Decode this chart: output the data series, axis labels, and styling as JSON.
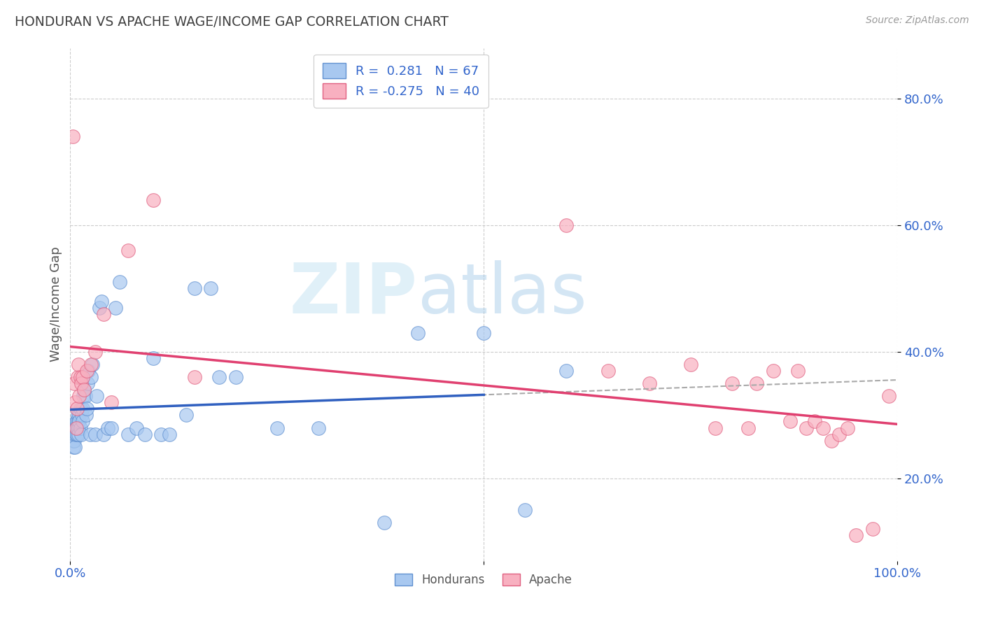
{
  "title": "HONDURAN VS APACHE WAGE/INCOME GAP CORRELATION CHART",
  "source": "Source: ZipAtlas.com",
  "ylabel": "Wage/Income Gap",
  "x_min": 0.0,
  "x_max": 1.0,
  "y_min": 0.07,
  "y_max": 0.88,
  "yticks": [
    0.2,
    0.4,
    0.6,
    0.8
  ],
  "ytick_labels": [
    "20.0%",
    "40.0%",
    "60.0%",
    "80.0%"
  ],
  "honduran_color": "#A8C8F0",
  "apache_color": "#F8B0C0",
  "honduran_edge": "#6090D0",
  "apache_edge": "#E06080",
  "reg_line_honduran": "#3060C0",
  "reg_line_apache": "#E04070",
  "dashed_color": "#AAAAAA",
  "R_honduran": 0.281,
  "N_honduran": 67,
  "R_apache": -0.275,
  "N_apache": 40,
  "background_color": "#FFFFFF",
  "grid_color": "#CCCCCC",
  "watermark_zip": "ZIP",
  "watermark_atlas": "atlas",
  "legend_label_honduran": "Hondurans",
  "legend_label_apache": "Apache",
  "title_color": "#404040",
  "axis_label_color": "#555555",
  "tick_label_color": "#3366CC",
  "honduran_x": [
    0.002,
    0.003,
    0.003,
    0.004,
    0.004,
    0.005,
    0.005,
    0.005,
    0.006,
    0.006,
    0.006,
    0.007,
    0.007,
    0.007,
    0.008,
    0.008,
    0.008,
    0.009,
    0.009,
    0.01,
    0.01,
    0.01,
    0.011,
    0.011,
    0.012,
    0.012,
    0.013,
    0.014,
    0.015,
    0.015,
    0.016,
    0.017,
    0.018,
    0.019,
    0.02,
    0.021,
    0.022,
    0.024,
    0.025,
    0.027,
    0.03,
    0.032,
    0.035,
    0.038,
    0.04,
    0.045,
    0.05,
    0.055,
    0.06,
    0.07,
    0.08,
    0.09,
    0.1,
    0.11,
    0.12,
    0.14,
    0.15,
    0.17,
    0.18,
    0.2,
    0.25,
    0.3,
    0.38,
    0.42,
    0.5,
    0.55,
    0.6
  ],
  "honduran_y": [
    0.27,
    0.28,
    0.26,
    0.27,
    0.25,
    0.28,
    0.27,
    0.26,
    0.28,
    0.27,
    0.25,
    0.29,
    0.28,
    0.27,
    0.29,
    0.28,
    0.27,
    0.3,
    0.28,
    0.29,
    0.28,
    0.27,
    0.3,
    0.29,
    0.31,
    0.28,
    0.27,
    0.3,
    0.31,
    0.29,
    0.33,
    0.34,
    0.33,
    0.3,
    0.31,
    0.35,
    0.37,
    0.27,
    0.36,
    0.38,
    0.27,
    0.33,
    0.47,
    0.48,
    0.27,
    0.28,
    0.28,
    0.47,
    0.51,
    0.27,
    0.28,
    0.27,
    0.39,
    0.27,
    0.27,
    0.3,
    0.5,
    0.5,
    0.36,
    0.36,
    0.28,
    0.28,
    0.13,
    0.43,
    0.43,
    0.15,
    0.37
  ],
  "apache_x": [
    0.003,
    0.005,
    0.006,
    0.007,
    0.008,
    0.009,
    0.01,
    0.011,
    0.012,
    0.013,
    0.015,
    0.017,
    0.02,
    0.025,
    0.03,
    0.04,
    0.05,
    0.07,
    0.1,
    0.15,
    0.6,
    0.65,
    0.7,
    0.75,
    0.78,
    0.8,
    0.82,
    0.83,
    0.85,
    0.87,
    0.88,
    0.89,
    0.9,
    0.91,
    0.92,
    0.93,
    0.94,
    0.95,
    0.97,
    0.99
  ],
  "apache_y": [
    0.74,
    0.35,
    0.32,
    0.28,
    0.31,
    0.36,
    0.38,
    0.33,
    0.36,
    0.35,
    0.36,
    0.34,
    0.37,
    0.38,
    0.4,
    0.46,
    0.32,
    0.56,
    0.64,
    0.36,
    0.6,
    0.37,
    0.35,
    0.38,
    0.28,
    0.35,
    0.28,
    0.35,
    0.37,
    0.29,
    0.37,
    0.28,
    0.29,
    0.28,
    0.26,
    0.27,
    0.28,
    0.11,
    0.12,
    0.33
  ]
}
